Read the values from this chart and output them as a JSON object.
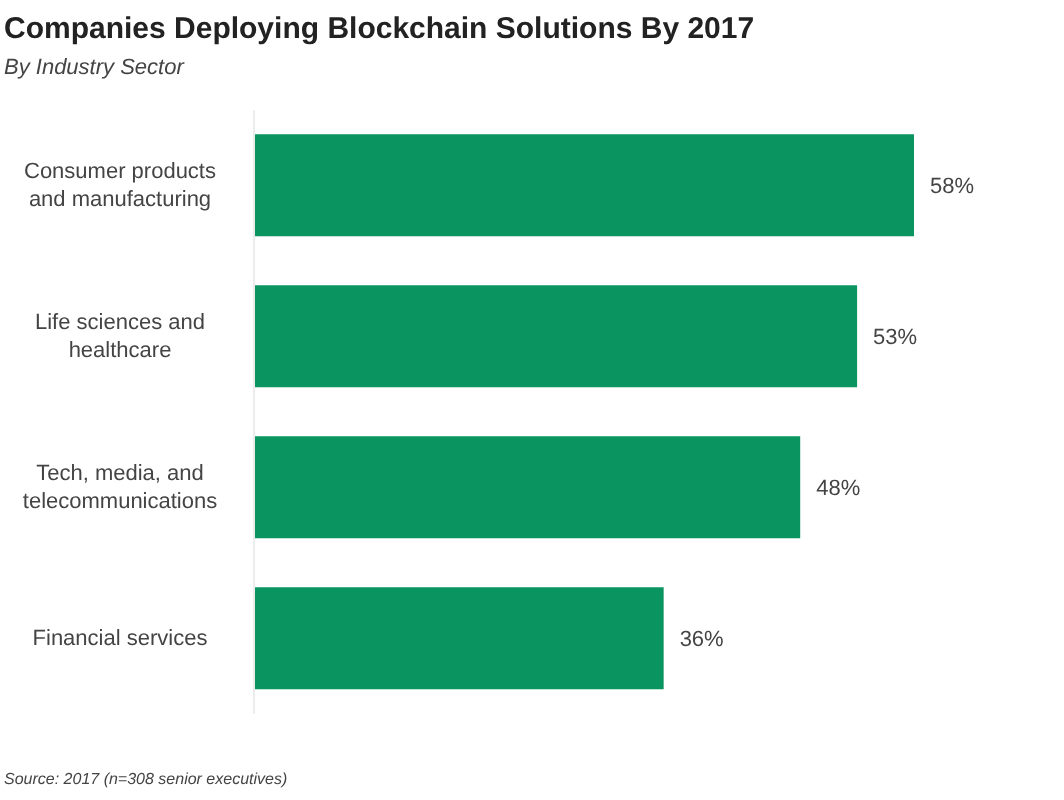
{
  "chart_data": {
    "type": "bar",
    "orientation": "horizontal",
    "title": "Companies Deploying Blockchain Solutions By 2017",
    "subtitle": "By Industry Sector",
    "categories": [
      "Consumer products and manufacturing",
      "Life sciences and healthcare",
      "Tech, media, and telecommunications",
      "Financial services"
    ],
    "values": [
      58,
      53,
      48,
      36
    ],
    "value_labels": [
      "58%",
      "53%",
      "48%",
      "36%"
    ],
    "color": "#0a9460",
    "annotations": [
      "Source: 2017 (n=308 senior executives)"
    ]
  }
}
